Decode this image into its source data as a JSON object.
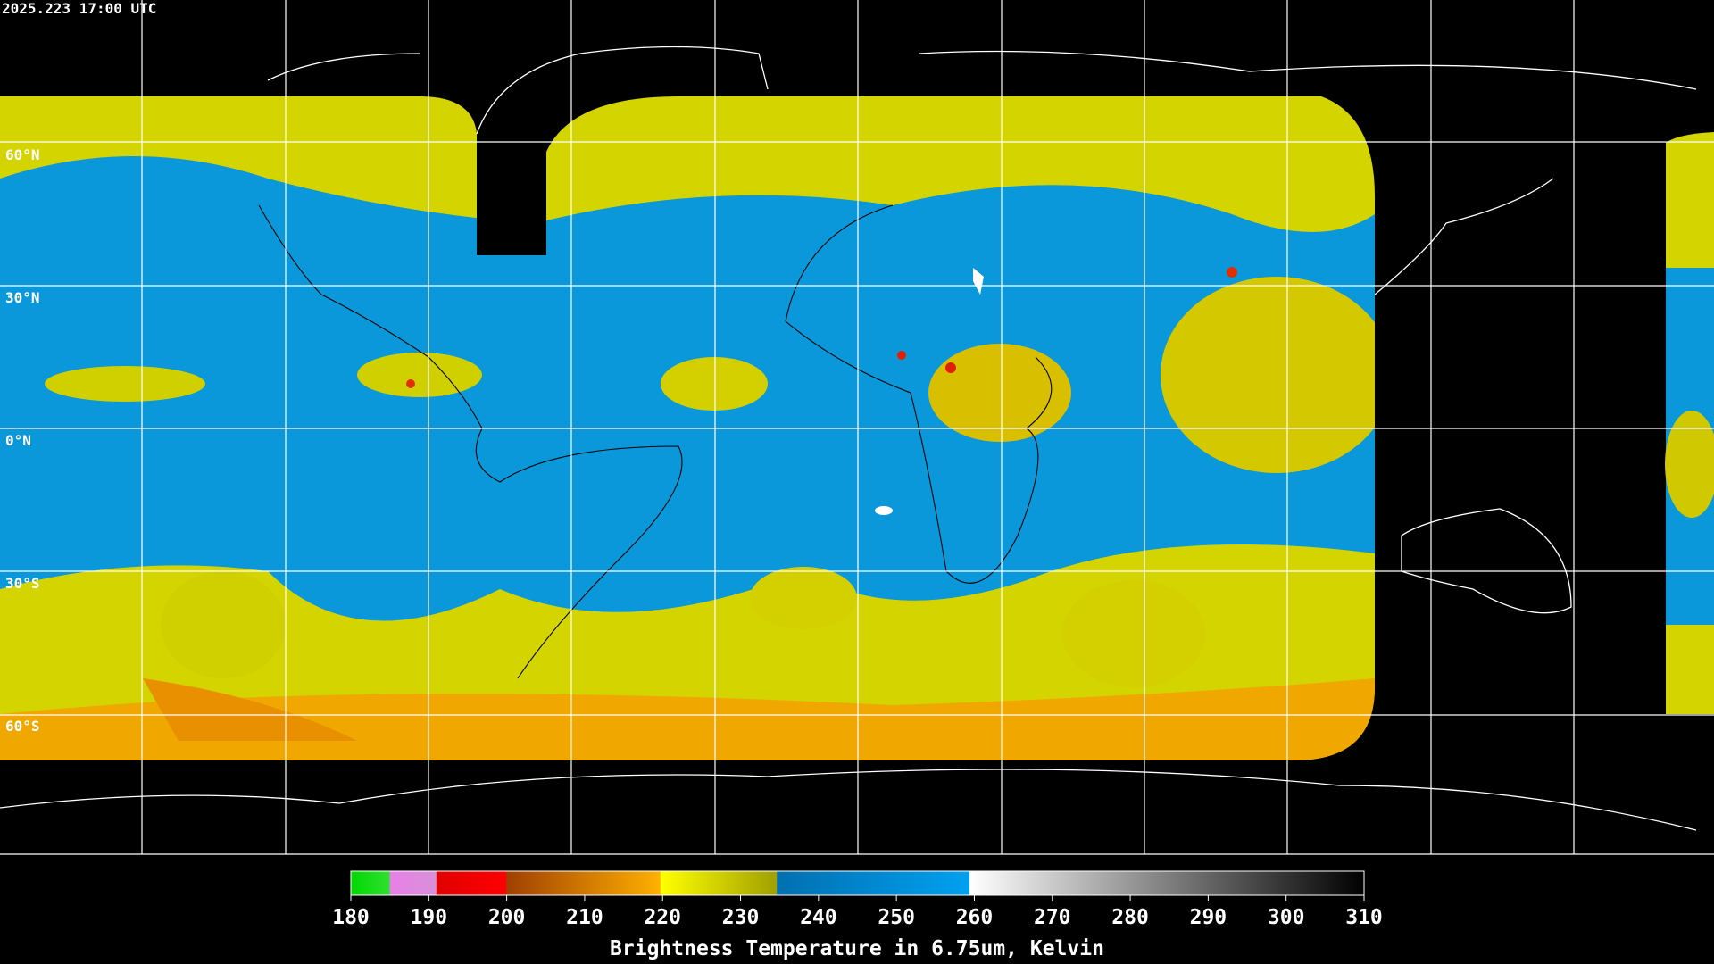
{
  "timestamp": "2025.223 17:00 UTC",
  "lat_labels": [
    "60°N",
    "30°N",
    "0°N",
    "30°S",
    "60°S"
  ],
  "colorbar": {
    "title": "Brightness Temperature in 6.75um, Kelvin",
    "lim": [
      180,
      310
    ],
    "ticks": [
      180,
      190,
      200,
      210,
      220,
      230,
      240,
      250,
      260,
      270,
      280,
      290,
      300,
      310
    ]
  }
}
